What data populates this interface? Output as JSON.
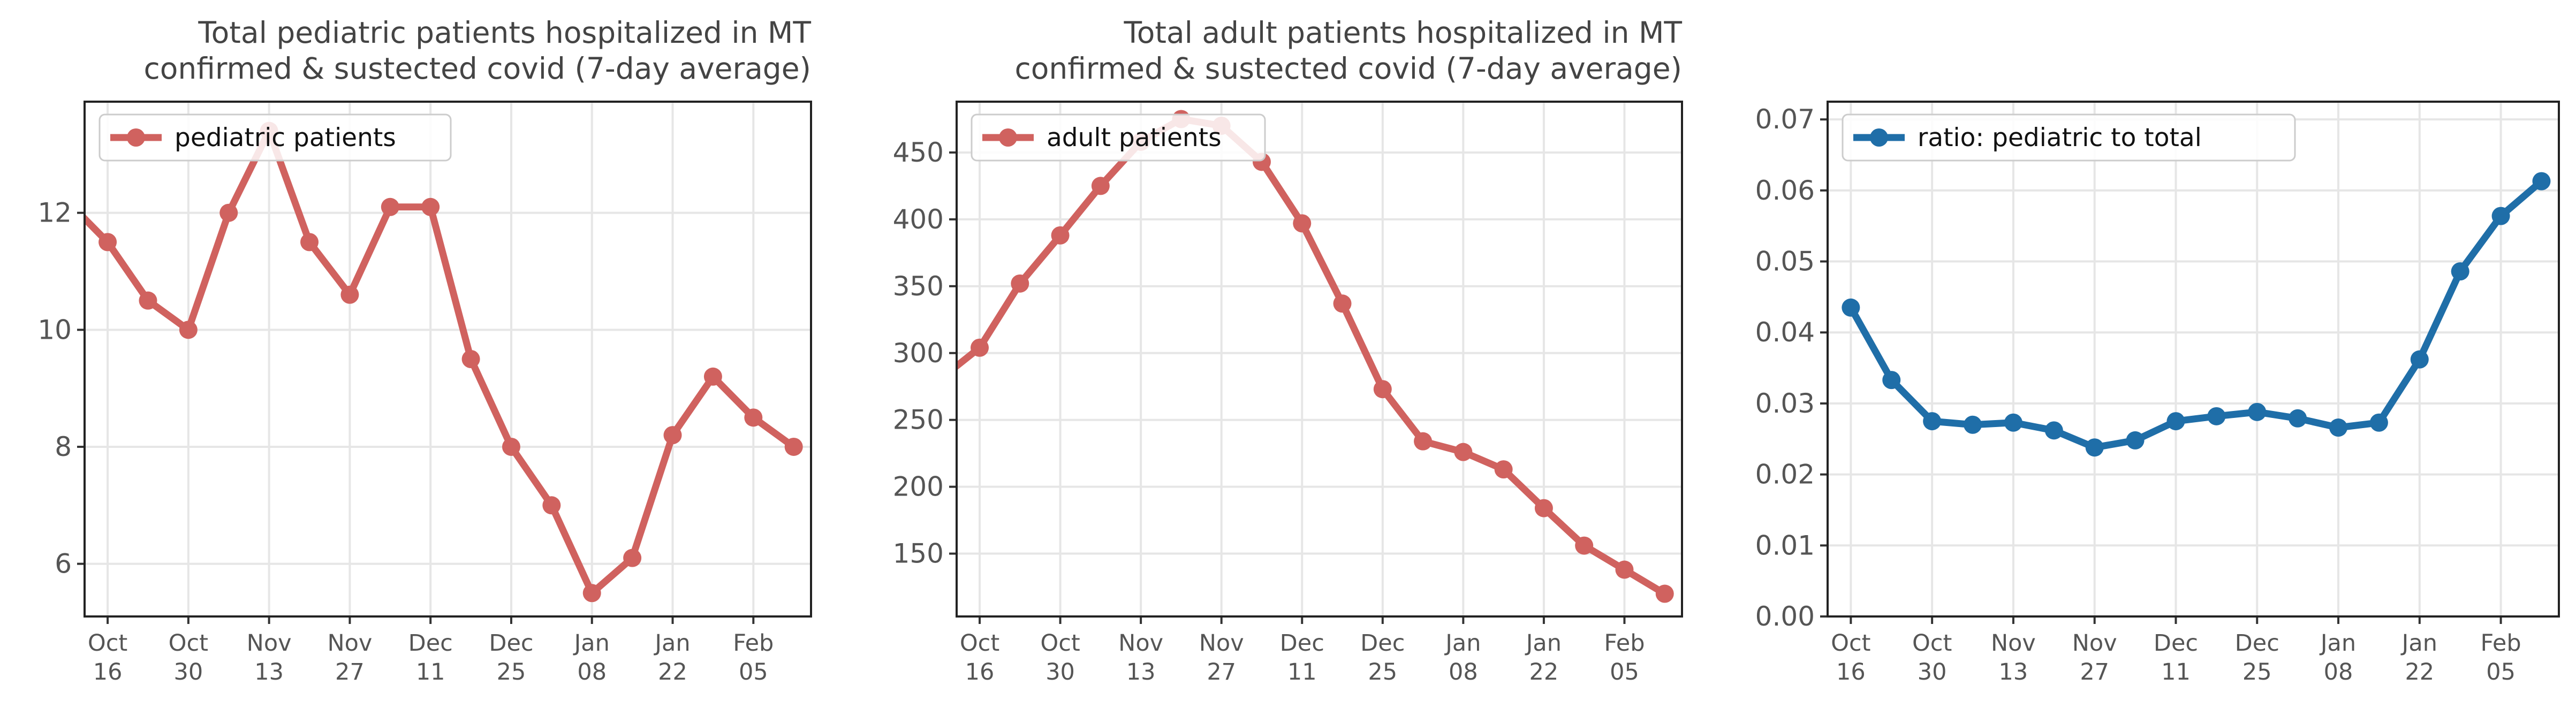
{
  "x_dates": [
    "2021-10-16",
    "2021-10-23",
    "2021-10-30",
    "2021-11-06",
    "2021-11-13",
    "2021-11-20",
    "2021-11-27",
    "2021-12-04",
    "2021-12-11",
    "2021-12-18",
    "2021-12-25",
    "2022-01-01",
    "2022-01-08",
    "2022-01-15",
    "2022-01-22",
    "2022-01-29",
    "2022-02-05",
    "2022-02-12"
  ],
  "x_tick_labels": [
    [
      "Oct",
      "16"
    ],
    [
      "Oct",
      "30"
    ],
    [
      "Nov",
      "13"
    ],
    [
      "Nov",
      "27"
    ],
    [
      "Dec",
      "11"
    ],
    [
      "Dec",
      "25"
    ],
    [
      "Jan",
      "08"
    ],
    [
      "Jan",
      "22"
    ],
    [
      "Feb",
      "05"
    ]
  ],
  "colors": {
    "pediatric": "#d0625f",
    "adult": "#d0625f",
    "ratio": "#1f6ea8"
  },
  "chart_data": [
    {
      "type": "line",
      "title_lines": [
        "Total pediatric patients hospitalized in MT",
        "confirmed & sustected covid (7-day average)"
      ],
      "xlabel": "",
      "ylabel": "",
      "ylim": [
        5.1,
        13.9
      ],
      "yticks": [
        6,
        8,
        10,
        12
      ],
      "ytick_labels": [
        "6",
        "8",
        "10",
        "12"
      ],
      "grid": true,
      "legend": "top-left",
      "series": [
        {
          "name": "pediatric patients",
          "values": [
            11.5,
            10.5,
            10.0,
            12.0,
            13.4,
            11.5,
            10.6,
            12.1,
            12.1,
            9.5,
            8.0,
            7.0,
            5.5,
            6.1,
            8.2,
            9.2,
            8.5,
            8.0
          ],
          "lead_in": 12.2
        }
      ]
    },
    {
      "type": "line",
      "title_lines": [
        "Total adult patients hospitalized in MT",
        "confirmed & sustected covid (7-day average)"
      ],
      "xlabel": "",
      "ylabel": "",
      "ylim": [
        103,
        488
      ],
      "yticks": [
        150,
        200,
        250,
        300,
        350,
        400,
        450
      ],
      "ytick_labels": [
        "150",
        "200",
        "250",
        "300",
        "350",
        "400",
        "450"
      ],
      "grid": true,
      "legend": "top-left",
      "series": [
        {
          "name": "adult patients",
          "values": [
            304,
            352,
            388,
            425,
            458,
            475,
            470,
            443,
            397,
            337,
            273,
            234,
            226,
            213,
            184,
            156,
            138,
            120
          ],
          "lead_in": 280
        }
      ]
    },
    {
      "type": "line",
      "title_lines": [],
      "xlabel": "",
      "ylabel": "",
      "ylim": [
        0.0,
        0.0725
      ],
      "yticks": [
        0.0,
        0.01,
        0.02,
        0.03,
        0.04,
        0.05,
        0.06,
        0.07
      ],
      "ytick_labels": [
        "0.00",
        "0.01",
        "0.02",
        "0.03",
        "0.04",
        "0.05",
        "0.06",
        "0.07"
      ],
      "grid": true,
      "legend": "top-left",
      "series": [
        {
          "name": "ratio: pediatric to total",
          "values": [
            0.0435,
            0.0333,
            0.0275,
            0.027,
            0.0273,
            0.0262,
            0.0238,
            0.0248,
            0.0275,
            0.0282,
            0.0288,
            0.0279,
            0.0266,
            0.0273,
            0.0362,
            0.0486,
            0.0564,
            0.0613
          ]
        }
      ]
    }
  ]
}
